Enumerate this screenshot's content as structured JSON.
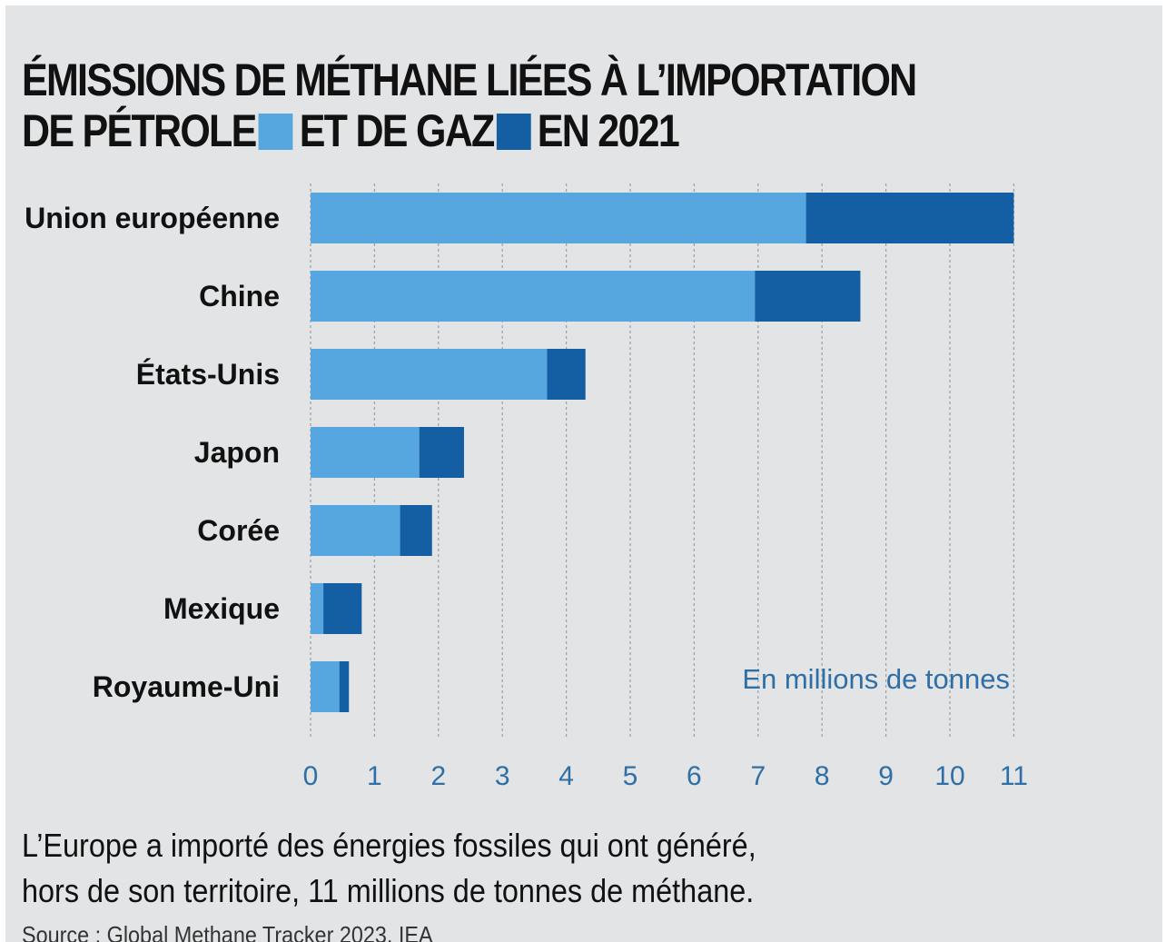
{
  "title": {
    "line1": "ÉMISSIONS DE MÉTHANE LIÉES À L’IMPORTATION",
    "part_a": "DE PÉTROLE",
    "part_b": "ET DE GAZ",
    "part_c": "EN 2021"
  },
  "colors": {
    "oil": "#56a6e0",
    "gas": "#145ea3",
    "grid": "#9aa0a6",
    "axis_text": "#2f6fa6"
  },
  "chart_data": {
    "type": "bar",
    "orientation": "horizontal",
    "stacked": true,
    "categories": [
      "Union européenne",
      "Chine",
      "États-Unis",
      "Japon",
      "Corée",
      "Mexique",
      "Royaume-Uni"
    ],
    "series": [
      {
        "name": "DE PÉTROLE",
        "values": [
          7.75,
          6.95,
          3.7,
          1.7,
          1.4,
          0.2,
          0.45
        ]
      },
      {
        "name": "ET DE GAZ",
        "values": [
          3.25,
          1.65,
          0.6,
          0.7,
          0.5,
          0.6,
          0.15
        ]
      }
    ],
    "xlim": [
      0,
      11
    ],
    "xticks": [
      "0",
      "1",
      "2",
      "3",
      "4",
      "5",
      "6",
      "7",
      "8",
      "9",
      "10",
      "11"
    ],
    "unit_label": "En millions de tonnes",
    "grid": true
  },
  "caption": {
    "line1": "L’Europe a importé des énergies fossiles qui ont généré,",
    "line2": "hors de son territoire, 11 millions de tonnes de méthane."
  },
  "source": "Source : Global Methane Tracker 2023, IEA"
}
